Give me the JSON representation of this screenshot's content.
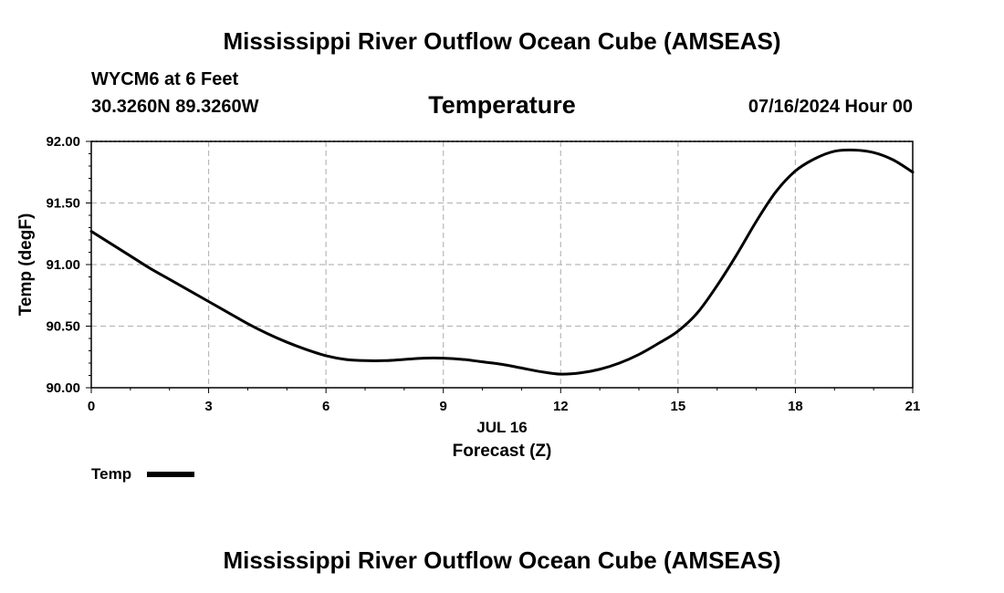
{
  "header": {
    "title": "Mississippi River Outflow Ocean Cube (AMSEAS)",
    "station": "WYCM6 at 6 Feet",
    "coordinates": "30.3260N  89.3260W",
    "variable": "Temperature",
    "datetime": "07/16/2024 Hour 00"
  },
  "footer": {
    "title": "Mississippi River Outflow Ocean Cube (AMSEAS)"
  },
  "legend": {
    "label": "Temp"
  },
  "chart_data": {
    "type": "line",
    "title": "Temperature",
    "xlabel": "Forecast (Z)",
    "xlabel_date": "JUL 16",
    "ylabel": "Temp (degF)",
    "xlim": [
      0,
      21
    ],
    "ylim": [
      90.0,
      92.0
    ],
    "xticks": [
      0,
      3,
      6,
      9,
      12,
      15,
      18,
      21
    ],
    "xtick_labels": [
      "0",
      "3",
      "6",
      "9",
      "12",
      "15",
      "18",
      "21"
    ],
    "yticks": [
      90.0,
      90.5,
      91.0,
      91.5,
      92.0
    ],
    "ytick_labels": [
      "90.00",
      "90.50",
      "91.00",
      "91.50",
      "92.00"
    ],
    "grid": true,
    "legend_position": "bottom-left",
    "series": [
      {
        "name": "Temp",
        "color": "#000000",
        "x": [
          0,
          0.5,
          1,
          1.5,
          2,
          2.5,
          3,
          3.5,
          4,
          4.5,
          5,
          5.5,
          6,
          6.5,
          7,
          7.5,
          8,
          8.5,
          9,
          9.5,
          10,
          10.5,
          11,
          11.5,
          12,
          12.5,
          13,
          13.5,
          14,
          14.5,
          15,
          15.5,
          16,
          16.5,
          17,
          17.5,
          18,
          18.5,
          19,
          19.5,
          20,
          20.5,
          21
        ],
        "values": [
          91.27,
          91.17,
          91.07,
          90.97,
          90.88,
          90.79,
          90.7,
          90.61,
          90.52,
          90.44,
          90.37,
          90.31,
          90.26,
          90.23,
          90.22,
          90.22,
          90.23,
          90.24,
          90.24,
          90.23,
          90.21,
          90.19,
          90.16,
          90.13,
          90.11,
          90.12,
          90.15,
          90.2,
          90.27,
          90.36,
          90.46,
          90.61,
          90.83,
          91.08,
          91.35,
          91.59,
          91.76,
          91.86,
          91.92,
          91.93,
          91.91,
          91.85,
          91.75
        ]
      }
    ]
  }
}
